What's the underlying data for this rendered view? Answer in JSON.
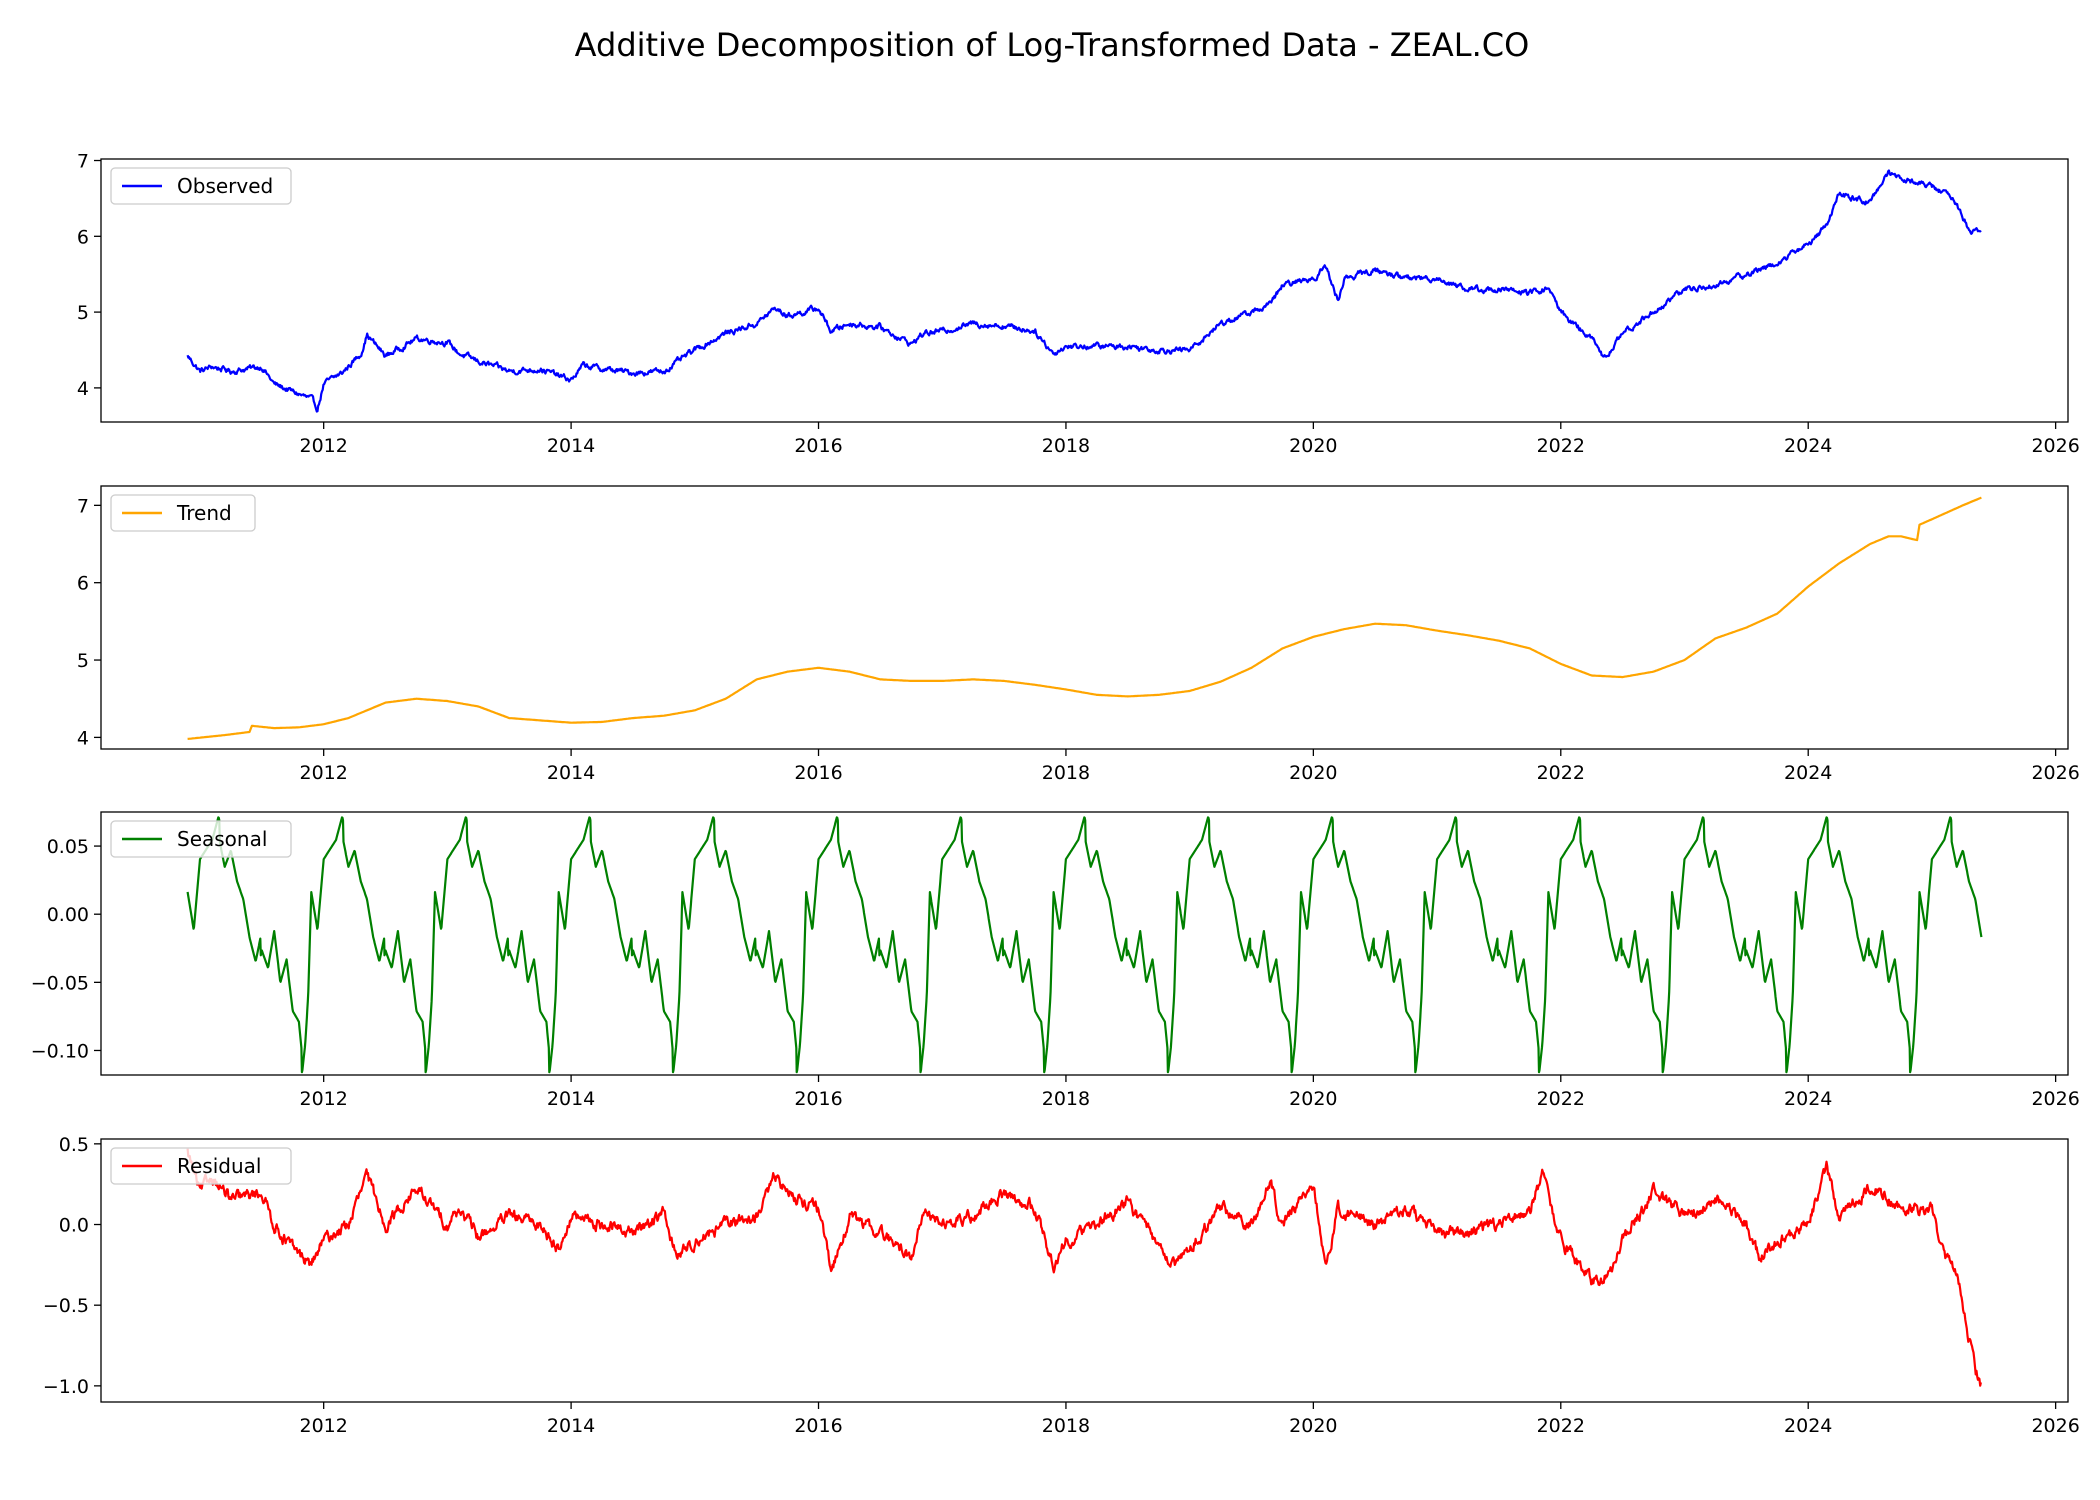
{
  "figure": {
    "title": "Additive Decomposition of Log-Transformed Data - ZEAL.CO"
  },
  "chart_data": [
    {
      "type": "line",
      "legend": "Observed",
      "legend_position": "upper-left",
      "color": "#0000ff",
      "grid": false,
      "xlim": [
        2010.2,
        2026.1
      ],
      "ylim": [
        3.55,
        7.02
      ],
      "xticks": [
        2012,
        2014,
        2016,
        2018,
        2020,
        2022,
        2024,
        2026
      ],
      "yticks": [
        4,
        5,
        6,
        7
      ],
      "ytick_labels": [
        "4",
        "5",
        "6",
        "7"
      ],
      "series": [
        {
          "name": "Observed",
          "x": [
            2010.9,
            2011.0,
            2011.1,
            2011.25,
            2011.5,
            2011.6,
            2011.75,
            2011.9,
            2011.95,
            2012.0,
            2012.15,
            2012.3,
            2012.35,
            2012.5,
            2012.75,
            2013.0,
            2013.1,
            2013.25,
            2013.5,
            2013.75,
            2014.0,
            2014.1,
            2014.25,
            2014.5,
            2014.75,
            2015.0,
            2015.25,
            2015.5,
            2015.65,
            2015.75,
            2016.0,
            2016.1,
            2016.25,
            2016.5,
            2016.75,
            2016.85,
            2017.0,
            2017.25,
            2017.5,
            2017.75,
            2017.9,
            2018.0,
            2018.25,
            2018.5,
            2018.75,
            2019.0,
            2019.25,
            2019.5,
            2019.65,
            2019.75,
            2020.0,
            2020.1,
            2020.2,
            2020.25,
            2020.5,
            2020.75,
            2021.0,
            2021.25,
            2021.5,
            2021.75,
            2021.9,
            2022.0,
            2022.25,
            2022.35,
            2022.5,
            2022.75,
            2023.0,
            2023.25,
            2023.5,
            2023.75,
            2024.0,
            2024.15,
            2024.25,
            2024.5,
            2024.65,
            2024.75,
            2025.0,
            2025.15,
            2025.3,
            2025.4
          ],
          "y": [
            4.42,
            4.22,
            4.28,
            4.22,
            4.28,
            4.05,
            3.95,
            3.85,
            3.72,
            4.05,
            4.2,
            4.45,
            4.7,
            4.42,
            4.65,
            4.6,
            4.45,
            4.35,
            4.22,
            4.25,
            4.1,
            4.3,
            4.25,
            4.2,
            4.22,
            4.5,
            4.72,
            4.85,
            5.05,
            4.95,
            5.05,
            4.75,
            4.85,
            4.8,
            4.58,
            4.72,
            4.75,
            4.85,
            4.82,
            4.75,
            4.45,
            4.55,
            4.55,
            4.55,
            4.5,
            4.5,
            4.85,
            5.0,
            5.1,
            5.35,
            5.45,
            5.6,
            5.15,
            5.45,
            5.55,
            5.45,
            5.45,
            5.3,
            5.3,
            5.25,
            5.32,
            5.0,
            4.65,
            4.38,
            4.72,
            5.0,
            5.3,
            5.35,
            5.5,
            5.65,
            5.9,
            6.15,
            6.55,
            6.45,
            6.85,
            6.78,
            6.65,
            6.55,
            6.1,
            6.05
          ]
        }
      ]
    },
    {
      "type": "line",
      "legend": "Trend",
      "legend_position": "upper-left",
      "color": "#ffa500",
      "grid": false,
      "xlim": [
        2010.2,
        2026.1
      ],
      "ylim": [
        3.85,
        7.25
      ],
      "xticks": [
        2012,
        2014,
        2016,
        2018,
        2020,
        2022,
        2024,
        2026
      ],
      "yticks": [
        4,
        5,
        6,
        7
      ],
      "ytick_labels": [
        "4",
        "5",
        "6",
        "7"
      ],
      "series": [
        {
          "name": "Trend",
          "x": [
            2010.9,
            2011.2,
            2011.4,
            2011.42,
            2011.6,
            2011.8,
            2011.9,
            2012.0,
            2012.2,
            2012.5,
            2012.75,
            2013.0,
            2013.25,
            2013.5,
            2013.75,
            2014.0,
            2014.25,
            2014.5,
            2014.75,
            2015.0,
            2015.25,
            2015.5,
            2015.75,
            2016.0,
            2016.25,
            2016.5,
            2016.75,
            2017.0,
            2017.25,
            2017.5,
            2017.75,
            2018.0,
            2018.25,
            2018.5,
            2018.75,
            2019.0,
            2019.25,
            2019.5,
            2019.75,
            2020.0,
            2020.25,
            2020.5,
            2020.75,
            2021.0,
            2021.25,
            2021.5,
            2021.75,
            2022.0,
            2022.25,
            2022.5,
            2022.75,
            2023.0,
            2023.25,
            2023.5,
            2023.75,
            2024.0,
            2024.25,
            2024.5,
            2024.65,
            2024.75,
            2024.88,
            2024.9,
            2025.0,
            2025.25,
            2025.4
          ],
          "y": [
            3.98,
            4.03,
            4.07,
            4.15,
            4.12,
            4.13,
            4.15,
            4.17,
            4.25,
            4.45,
            4.5,
            4.47,
            4.4,
            4.25,
            4.22,
            4.19,
            4.2,
            4.25,
            4.28,
            4.35,
            4.5,
            4.75,
            4.85,
            4.9,
            4.85,
            4.75,
            4.73,
            4.73,
            4.75,
            4.73,
            4.68,
            4.62,
            4.55,
            4.53,
            4.55,
            4.6,
            4.72,
            4.9,
            5.15,
            5.3,
            5.4,
            5.47,
            5.45,
            5.38,
            5.32,
            5.25,
            5.15,
            4.95,
            4.8,
            4.78,
            4.85,
            5.0,
            5.28,
            5.42,
            5.6,
            5.95,
            6.25,
            6.5,
            6.6,
            6.6,
            6.55,
            6.75,
            6.82,
            7.0,
            7.1
          ]
        }
      ]
    },
    {
      "type": "line",
      "legend": "Seasonal",
      "legend_position": "upper-left",
      "color": "#008000",
      "grid": false,
      "xlim": [
        2010.2,
        2026.1
      ],
      "ylim": [
        -0.118,
        0.075
      ],
      "xticks": [
        2012,
        2014,
        2016,
        2018,
        2020,
        2022,
        2024,
        2026
      ],
      "yticks": [
        -0.1,
        -0.05,
        0,
        0.05
      ],
      "ytick_labels": [
        "−0.10",
        "−0.05",
        "0.00",
        "0.05"
      ],
      "period_years": 1.0,
      "cycle_start": 2010.9,
      "cycle_end": 2025.4,
      "cycle_profile": {
        "x": [
          0.0,
          0.05,
          0.1,
          0.2,
          0.25,
          0.3,
          0.35,
          0.4,
          0.45,
          0.5,
          0.55,
          0.6,
          0.65,
          0.7,
          0.75,
          0.8,
          0.85,
          0.9,
          0.925,
          0.95,
          0.975,
          1.0
        ],
        "y": [
          0.02,
          -0.01,
          0.04,
          0.05,
          0.065,
          0.04,
          0.05,
          0.025,
          0.01,
          -0.02,
          -0.04,
          -0.02,
          -0.035,
          -0.01,
          -0.05,
          -0.035,
          -0.075,
          -0.085,
          -0.11,
          -0.09,
          -0.055,
          0.02
        ]
      }
    },
    {
      "type": "line",
      "legend": "Residual",
      "legend_position": "upper-left",
      "color": "#ff0000",
      "grid": false,
      "xlim": [
        2010.2,
        2026.1
      ],
      "ylim": [
        -1.1,
        0.53
      ],
      "xticks": [
        2012,
        2014,
        2016,
        2018,
        2020,
        2022,
        2024,
        2026
      ],
      "yticks": [
        -1.0,
        -0.5,
        0,
        0.5
      ],
      "ytick_labels": [
        "−1.0",
        "−0.5",
        "0.0",
        "0.5"
      ],
      "series": [
        {
          "name": "Residual",
          "x": [
            2010.9,
            2011.0,
            2011.1,
            2011.25,
            2011.5,
            2011.6,
            2011.75,
            2011.9,
            2012.0,
            2012.2,
            2012.35,
            2012.5,
            2012.75,
            2013.0,
            2013.1,
            2013.25,
            2013.5,
            2013.75,
            2013.9,
            2014.0,
            2014.25,
            2014.5,
            2014.75,
            2014.85,
            2015.0,
            2015.25,
            2015.5,
            2015.65,
            2015.75,
            2016.0,
            2016.1,
            2016.25,
            2016.5,
            2016.75,
            2016.85,
            2017.0,
            2017.25,
            2017.5,
            2017.75,
            2017.9,
            2018.0,
            2018.25,
            2018.5,
            2018.75,
            2018.9,
            2019.0,
            2019.25,
            2019.5,
            2019.65,
            2019.75,
            2020.0,
            2020.1,
            2020.2,
            2020.5,
            2020.75,
            2021.0,
            2021.25,
            2021.5,
            2021.75,
            2021.85,
            2022.0,
            2022.25,
            2022.4,
            2022.5,
            2022.75,
            2023.0,
            2023.25,
            2023.5,
            2023.6,
            2023.75,
            2024.0,
            2024.15,
            2024.25,
            2024.5,
            2024.75,
            2025.0,
            2025.1,
            2025.2,
            2025.25,
            2025.3,
            2025.35,
            2025.4
          ],
          "y": [
            0.45,
            0.2,
            0.3,
            0.15,
            0.2,
            0.0,
            -0.15,
            -0.25,
            -0.1,
            0.0,
            0.3,
            0.0,
            0.22,
            0.0,
            0.1,
            -0.08,
            0.05,
            0.0,
            -0.15,
            0.05,
            0.0,
            -0.05,
            0.08,
            -0.2,
            -0.1,
            0.0,
            0.05,
            0.3,
            0.2,
            0.1,
            -0.3,
            0.05,
            -0.05,
            -0.2,
            0.08,
            0.0,
            0.05,
            0.2,
            0.1,
            -0.25,
            -0.1,
            0.0,
            0.15,
            -0.15,
            -0.25,
            -0.15,
            0.1,
            0.0,
            0.25,
            0.0,
            0.25,
            -0.25,
            0.1,
            0.0,
            0.1,
            -0.05,
            -0.05,
            0.0,
            0.1,
            0.3,
            -0.1,
            -0.35,
            -0.3,
            -0.1,
            0.2,
            0.05,
            0.15,
            0.0,
            -0.2,
            -0.1,
            0.0,
            0.35,
            0.05,
            0.25,
            0.1,
            0.1,
            -0.2,
            -0.3,
            -0.5,
            -0.7,
            -0.9,
            -1.0
          ]
        }
      ]
    }
  ]
}
